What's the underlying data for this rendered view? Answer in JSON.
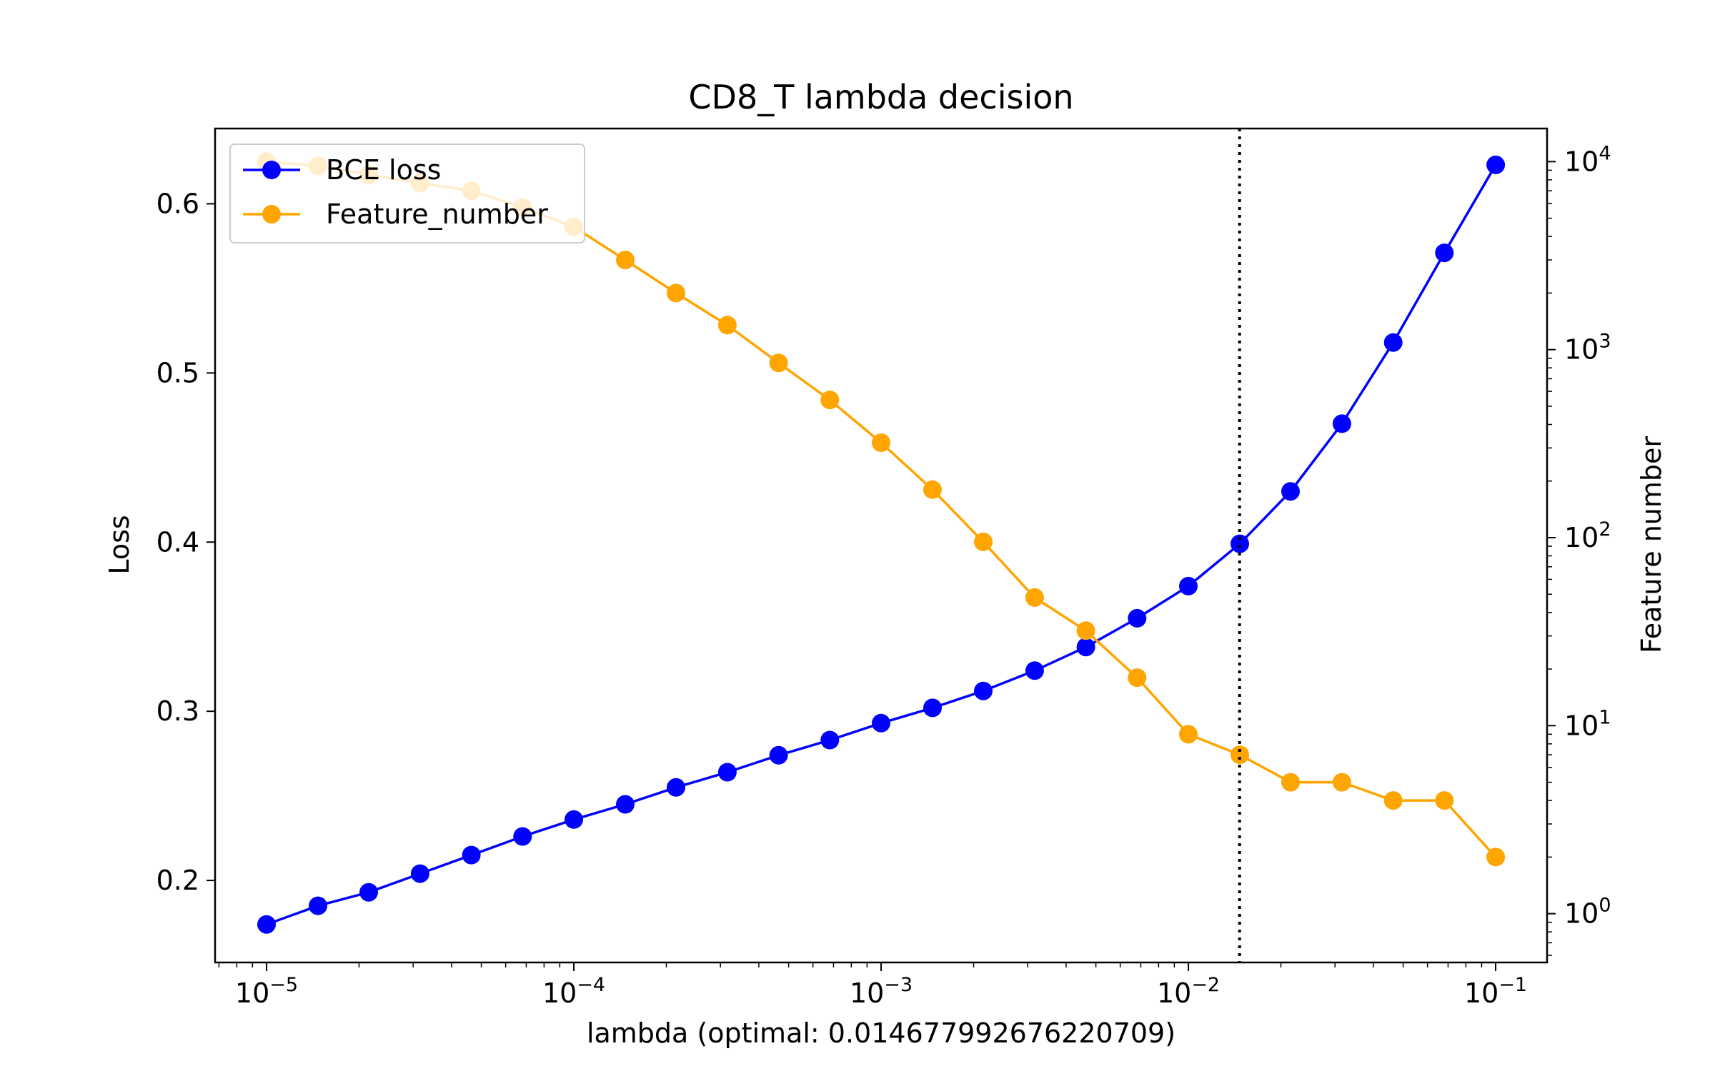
{
  "chart_data": {
    "type": "line",
    "title": "CD8_T lambda decision",
    "xlabel": "lambda (optimal: 0.014677992676220709)",
    "ylabel": "Loss",
    "y2label": "Feature number",
    "xscale": "log",
    "y2scale": "log",
    "xlim": [
      6.8e-06,
      0.147
    ],
    "ylim": [
      0.1515,
      0.6445
    ],
    "y2lim": [
      0.55,
      15000
    ],
    "x_ticks": [
      {
        "value": 1e-05,
        "base": "10",
        "exp": "−5"
      },
      {
        "value": 0.0001,
        "base": "10",
        "exp": "−4"
      },
      {
        "value": 0.001,
        "base": "10",
        "exp": "−3"
      },
      {
        "value": 0.01,
        "base": "10",
        "exp": "−2"
      },
      {
        "value": 0.1,
        "base": "10",
        "exp": "−1"
      }
    ],
    "y_ticks": [
      {
        "value": 0.2,
        "label": "0.2"
      },
      {
        "value": 0.3,
        "label": "0.3"
      },
      {
        "value": 0.4,
        "label": "0.4"
      },
      {
        "value": 0.5,
        "label": "0.5"
      },
      {
        "value": 0.6,
        "label": "0.6"
      }
    ],
    "y2_ticks": [
      {
        "value": 1,
        "base": "10",
        "exp": "0"
      },
      {
        "value": 10,
        "base": "10",
        "exp": "1"
      },
      {
        "value": 100,
        "base": "10",
        "exp": "2"
      },
      {
        "value": 1000,
        "base": "10",
        "exp": "3"
      },
      {
        "value": 10000,
        "base": "10",
        "exp": "4"
      }
    ],
    "x": [
      1e-05,
      1.47e-05,
      2.15e-05,
      3.16e-05,
      4.64e-05,
      6.81e-05,
      0.0001,
      0.000147,
      0.000215,
      0.000316,
      0.000464,
      0.000681,
      0.001,
      0.00147,
      0.00215,
      0.00316,
      0.00464,
      0.00681,
      0.01,
      0.0147,
      0.0215,
      0.0316,
      0.0464,
      0.0681,
      0.1
    ],
    "series": [
      {
        "name": "BCE loss",
        "axis": "left",
        "color": "#0000ff",
        "values": [
          0.174,
          0.185,
          0.193,
          0.204,
          0.215,
          0.226,
          0.236,
          0.245,
          0.255,
          0.264,
          0.274,
          0.283,
          0.293,
          0.302,
          0.312,
          0.324,
          0.338,
          0.355,
          0.374,
          0.399,
          0.43,
          0.47,
          0.518,
          0.571,
          0.623
        ]
      },
      {
        "name": "Feature_number",
        "axis": "right",
        "color": "#ffa500",
        "values": [
          10000,
          9500,
          8500,
          7700,
          7000,
          5700,
          4500,
          3000,
          2000,
          1350,
          850,
          540,
          320,
          180,
          95,
          48,
          32,
          18,
          9,
          7,
          5,
          5,
          4,
          4,
          2
        ]
      }
    ],
    "vline": {
      "x": 0.014677992676220709,
      "style": "dotted",
      "color": "#000000"
    },
    "legend": "top-left",
    "grid": false
  }
}
